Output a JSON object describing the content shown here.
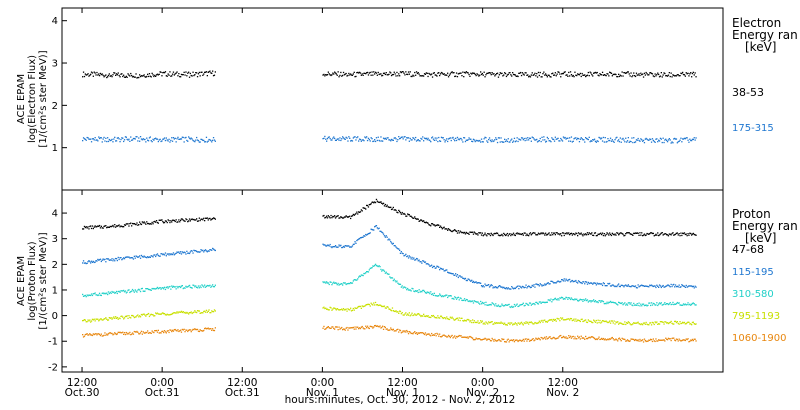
{
  "chart_data": [
    {
      "type": "scatter",
      "panel": "electron",
      "ylabel_lines": [
        "ACE EPAM",
        "log(Electron Flux)",
        "[1/(cm²s ster MeV)]"
      ],
      "legend_title_lines": [
        "Electron",
        "Energy ran",
        "[keV]"
      ],
      "ylim": [
        0,
        4.3
      ],
      "yticks": [
        1,
        2,
        3,
        4
      ],
      "legend_placement": "right",
      "series": [
        {
          "name": "38-53",
          "color": "#000000",
          "x": [
            0,
            4,
            8,
            12,
            16,
            20,
            24,
            28,
            32,
            36,
            40,
            44,
            48,
            52,
            56,
            60,
            64,
            68,
            72,
            76,
            80,
            84,
            88,
            92
          ],
          "values": [
            2.75,
            2.73,
            2.72,
            2.76,
            2.74,
            2.78,
            null,
            null,
            null,
            2.76,
            2.74,
            2.75,
            2.76,
            2.74,
            2.75,
            2.75,
            2.73,
            2.74,
            2.75,
            2.74,
            2.75,
            2.74,
            2.73,
            2.74
          ]
        },
        {
          "name": "175-315",
          "color": "#1f77d0",
          "x": [
            0,
            4,
            8,
            12,
            16,
            20,
            24,
            28,
            32,
            36,
            40,
            44,
            48,
            52,
            56,
            60,
            64,
            68,
            72,
            76,
            80,
            84,
            88,
            92
          ],
          "values": [
            1.22,
            1.2,
            1.22,
            1.2,
            1.21,
            1.2,
            null,
            null,
            null,
            1.22,
            1.22,
            1.21,
            1.22,
            1.21,
            1.2,
            1.2,
            1.19,
            1.21,
            1.21,
            1.2,
            1.2,
            1.19,
            1.18,
            1.2
          ]
        }
      ]
    },
    {
      "type": "scatter",
      "panel": "proton",
      "ylabel_lines": [
        "ACE EPAM",
        "log(Proton Flux)",
        "[1/(cm²s ster MeV)]"
      ],
      "legend_title_lines": [
        "Proton",
        "Energy ran",
        "[keV]"
      ],
      "ylim": [
        -2.2,
        4.9
      ],
      "yticks": [
        -2,
        -1,
        0,
        1,
        2,
        3,
        4
      ],
      "legend_placement": "right",
      "series": [
        {
          "name": "47-68",
          "color": "#000000",
          "x": [
            0,
            4,
            8,
            12,
            16,
            20,
            24,
            28,
            32,
            36,
            40,
            44,
            48,
            52,
            56,
            60,
            64,
            68,
            72,
            76,
            80,
            84,
            88,
            92
          ],
          "values": [
            3.45,
            3.5,
            3.6,
            3.7,
            3.75,
            3.8,
            null,
            null,
            null,
            3.9,
            3.85,
            4.5,
            4.0,
            3.6,
            3.3,
            3.2,
            3.2,
            3.2,
            3.2,
            3.2,
            3.2,
            3.2,
            3.2,
            3.2
          ]
        },
        {
          "name": "115-195",
          "color": "#1f77d0",
          "x": [
            0,
            4,
            8,
            12,
            16,
            20,
            24,
            28,
            32,
            36,
            40,
            44,
            48,
            52,
            56,
            60,
            64,
            68,
            72,
            76,
            80,
            84,
            88,
            92
          ],
          "values": [
            2.1,
            2.2,
            2.3,
            2.4,
            2.5,
            2.6,
            null,
            null,
            null,
            2.75,
            2.7,
            3.5,
            2.4,
            2.0,
            1.6,
            1.2,
            1.1,
            1.2,
            1.4,
            1.3,
            1.2,
            1.15,
            1.2,
            1.15
          ]
        },
        {
          "name": "310-580",
          "color": "#22d0c8",
          "x": [
            0,
            4,
            8,
            12,
            16,
            20,
            24,
            28,
            32,
            36,
            40,
            44,
            48,
            52,
            56,
            60,
            64,
            68,
            72,
            76,
            80,
            84,
            88,
            92
          ],
          "values": [
            0.8,
            0.9,
            1.0,
            1.1,
            1.15,
            1.2,
            null,
            null,
            null,
            1.3,
            1.25,
            2.0,
            1.1,
            0.9,
            0.7,
            0.5,
            0.4,
            0.5,
            0.7,
            0.6,
            0.5,
            0.45,
            0.5,
            0.45
          ]
        },
        {
          "name": "795-1193",
          "color": "#c8e000",
          "x": [
            0,
            4,
            8,
            12,
            16,
            20,
            24,
            28,
            32,
            36,
            40,
            44,
            48,
            52,
            56,
            60,
            64,
            68,
            72,
            76,
            80,
            84,
            88,
            92
          ],
          "values": [
            -0.2,
            -0.1,
            0.0,
            0.1,
            0.15,
            0.2,
            null,
            null,
            null,
            0.3,
            0.25,
            0.5,
            0.1,
            0.0,
            -0.1,
            -0.25,
            -0.3,
            -0.25,
            -0.1,
            -0.2,
            -0.25,
            -0.3,
            -0.25,
            -0.3
          ]
        },
        {
          "name": "1060-1900",
          "color": "#e8870f",
          "x": [
            0,
            4,
            8,
            12,
            16,
            20,
            24,
            28,
            32,
            36,
            40,
            44,
            48,
            52,
            56,
            60,
            64,
            68,
            72,
            76,
            80,
            84,
            88,
            92
          ],
          "values": [
            -0.75,
            -0.7,
            -0.65,
            -0.6,
            -0.55,
            -0.5,
            null,
            null,
            null,
            -0.45,
            -0.5,
            -0.4,
            -0.6,
            -0.7,
            -0.8,
            -0.9,
            -0.95,
            -0.9,
            -0.8,
            -0.85,
            -0.9,
            -0.95,
            -0.9,
            -0.95
          ]
        }
      ]
    }
  ],
  "x_axis": {
    "label": "hours:minutes, Oct. 30, 2012 - Nov. 2, 2012",
    "range_hours": [
      -3,
      96
    ],
    "ticks": [
      {
        "hour": 0,
        "time": "12:00",
        "date": "Oct.30"
      },
      {
        "hour": 12,
        "time": "0:00",
        "date": "Oct.31"
      },
      {
        "hour": 24,
        "time": "12:00",
        "date": "Oct.31"
      },
      {
        "hour": 36,
        "time": "0:00",
        "date": "Nov. 1"
      },
      {
        "hour": 48,
        "time": "12:00",
        "date": "Nov. 1"
      },
      {
        "hour": 60,
        "time": "0:00",
        "date": "Nov. 2"
      },
      {
        "hour": 72,
        "time": "12:00",
        "date": "Nov. 2"
      }
    ]
  }
}
